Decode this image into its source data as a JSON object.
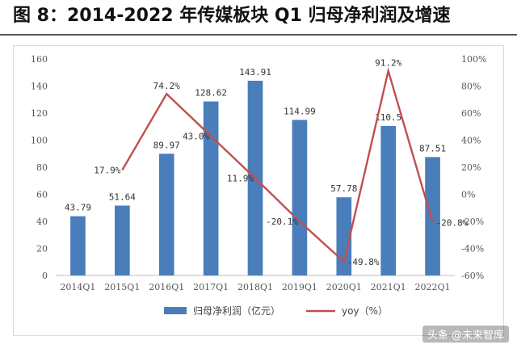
{
  "figure": {
    "title": "图 8：2014-2022 年传媒板块 Q1 归母净利润及增速",
    "watermark": "头条 @未来智库"
  },
  "chart_data": {
    "type": "bar",
    "categories": [
      "2014Q1",
      "2015Q1",
      "2016Q1",
      "2017Q1",
      "2018Q1",
      "2019Q1",
      "2020Q1",
      "2021Q1",
      "2022Q1"
    ],
    "series": [
      {
        "name": "归母净利润（亿元）",
        "type": "bar",
        "axis": "left",
        "color": "#4a7ebb",
        "values": [
          43.79,
          51.64,
          89.97,
          128.62,
          143.91,
          114.99,
          57.78,
          110.5,
          87.51
        ],
        "labels": [
          "43.79",
          "51.64",
          "89.97",
          "128.62",
          "143.91",
          "114.99",
          "57.78",
          "110.5",
          "87.51"
        ]
      },
      {
        "name": "yoy（%）",
        "type": "line",
        "axis": "right",
        "color": "#c0504d",
        "values": [
          null,
          17.9,
          74.2,
          43.0,
          11.9,
          -20.1,
          -49.8,
          91.2,
          -20.8
        ],
        "labels": [
          "",
          "17.9%",
          "74.2%",
          "43.0%",
          "11.9%",
          "-20.1%",
          "-49.8%",
          "91.2%",
          "-20.8%"
        ]
      }
    ],
    "left_axis": {
      "min": 0,
      "max": 160,
      "ticks": [
        "0",
        "20",
        "40",
        "60",
        "80",
        "100",
        "120",
        "140",
        "160"
      ]
    },
    "right_axis": {
      "min": -60,
      "max": 100,
      "ticks": [
        "-60%",
        "-40%",
        "-20%",
        "0%",
        "20%",
        "40%",
        "60%",
        "80%",
        "100%"
      ]
    },
    "grid": false,
    "legend_position": "bottom"
  }
}
